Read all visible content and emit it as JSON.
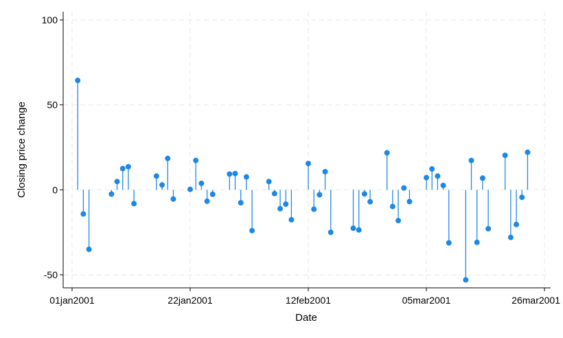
{
  "chart_data": {
    "type": "spike",
    "xlabel": "Date",
    "ylabel": "Closing price change",
    "xlim": [
      "2001-01-01",
      "2001-03-26"
    ],
    "ylim": [
      -50,
      100
    ],
    "x_ticks": [
      "01jan2001",
      "22jan2001",
      "12feb2001",
      "05mar2001",
      "26mar2001"
    ],
    "y_ticks": [
      -50,
      0,
      50,
      100
    ],
    "grid": true,
    "marker_color": "#1e88e5",
    "points": [
      {
        "x": "2001-01-02",
        "y": 64.4
      },
      {
        "x": "2001-01-03",
        "y": -14.2
      },
      {
        "x": "2001-01-04",
        "y": -35.0
      },
      {
        "x": "2001-01-08",
        "y": -2.5
      },
      {
        "x": "2001-01-09",
        "y": 4.9
      },
      {
        "x": "2001-01-10",
        "y": 12.5
      },
      {
        "x": "2001-01-11",
        "y": 13.6
      },
      {
        "x": "2001-01-12",
        "y": -8.1
      },
      {
        "x": "2001-01-16",
        "y": 8.1
      },
      {
        "x": "2001-01-17",
        "y": 2.9
      },
      {
        "x": "2001-01-18",
        "y": 18.5
      },
      {
        "x": "2001-01-19",
        "y": -5.4
      },
      {
        "x": "2001-01-22",
        "y": 0.3
      },
      {
        "x": "2001-01-23",
        "y": 17.3
      },
      {
        "x": "2001-01-24",
        "y": 3.8
      },
      {
        "x": "2001-01-25",
        "y": -6.7
      },
      {
        "x": "2001-01-26",
        "y": -2.6
      },
      {
        "x": "2001-01-29",
        "y": 9.3
      },
      {
        "x": "2001-01-30",
        "y": 9.6
      },
      {
        "x": "2001-01-31",
        "y": -7.6
      },
      {
        "x": "2001-02-01",
        "y": 7.6
      },
      {
        "x": "2001-02-02",
        "y": -24.0
      },
      {
        "x": "2001-02-05",
        "y": 4.9
      },
      {
        "x": "2001-02-06",
        "y": -2.2
      },
      {
        "x": "2001-02-07",
        "y": -11.1
      },
      {
        "x": "2001-02-08",
        "y": -8.4
      },
      {
        "x": "2001-02-09",
        "y": -17.6
      },
      {
        "x": "2001-02-12",
        "y": 15.5
      },
      {
        "x": "2001-02-13",
        "y": -11.4
      },
      {
        "x": "2001-02-14",
        "y": -2.9
      },
      {
        "x": "2001-02-15",
        "y": 10.7
      },
      {
        "x": "2001-02-16",
        "y": -25.0
      },
      {
        "x": "2001-02-20",
        "y": -22.6
      },
      {
        "x": "2001-02-21",
        "y": -23.6
      },
      {
        "x": "2001-02-22",
        "y": -2.4
      },
      {
        "x": "2001-02-23",
        "y": -7.0
      },
      {
        "x": "2001-02-26",
        "y": 21.8
      },
      {
        "x": "2001-02-27",
        "y": -9.8
      },
      {
        "x": "2001-02-28",
        "y": -18.1
      },
      {
        "x": "2001-03-01",
        "y": 1.1
      },
      {
        "x": "2001-03-02",
        "y": -6.9
      },
      {
        "x": "2001-03-05",
        "y": 7.2
      },
      {
        "x": "2001-03-06",
        "y": 12.3
      },
      {
        "x": "2001-03-07",
        "y": 8.1
      },
      {
        "x": "2001-03-08",
        "y": 2.6
      },
      {
        "x": "2001-03-09",
        "y": -31.2
      },
      {
        "x": "2001-03-12",
        "y": -53.0
      },
      {
        "x": "2001-03-13",
        "y": 17.3
      },
      {
        "x": "2001-03-14",
        "y": -30.9
      },
      {
        "x": "2001-03-15",
        "y": 6.9
      },
      {
        "x": "2001-03-16",
        "y": -22.9
      },
      {
        "x": "2001-03-19",
        "y": 20.3
      },
      {
        "x": "2001-03-20",
        "y": -28.0
      },
      {
        "x": "2001-03-21",
        "y": -20.4
      },
      {
        "x": "2001-03-22",
        "y": -4.4
      },
      {
        "x": "2001-03-23",
        "y": 22.1
      }
    ]
  }
}
